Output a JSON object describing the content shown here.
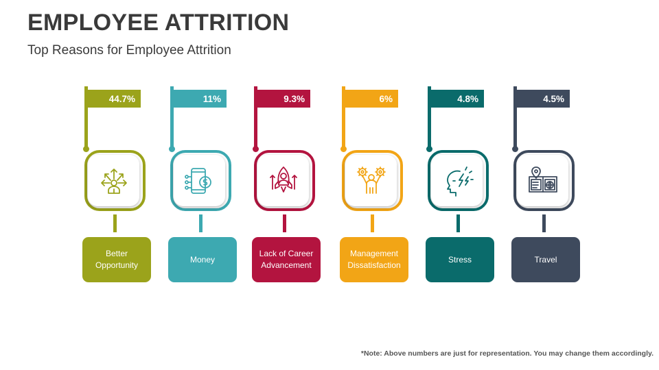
{
  "header": {
    "title": "EMPLOYEE ATTRITION",
    "subtitle": "Top Reasons for Employee Attrition"
  },
  "note": "*Note: Above numbers are just for representation. You may change them accordingly.",
  "items": [
    {
      "label": "Better Opportunity",
      "value": "44.7%",
      "color": "#9ba31b",
      "icon": "opportunity-arrows-person-icon"
    },
    {
      "label": "Money",
      "value": "11%",
      "color": "#3da9b1",
      "icon": "mobile-money-icon"
    },
    {
      "label": "Lack of Career Advancement",
      "value": "9.3%",
      "color": "#b3143f",
      "icon": "rocket-career-icon"
    },
    {
      "label": "Management Dissatisfaction",
      "value": "6%",
      "color": "#f2a516",
      "icon": "manager-gears-icon"
    },
    {
      "label": "Stress",
      "value": "4.8%",
      "color": "#0a6b6b",
      "icon": "stressed-head-icon"
    },
    {
      "label": "Travel",
      "value": "4.5%",
      "color": "#3e4a5d",
      "icon": "travel-map-book-icon"
    }
  ]
}
